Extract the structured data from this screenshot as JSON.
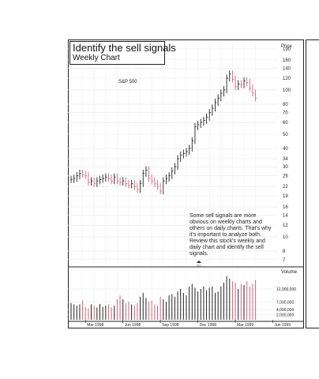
{
  "chart_data": {
    "type": "ohlc",
    "title": "Identify the sell signals",
    "subtitle": "Weekly Chart",
    "benchmark_label": "S&P 500",
    "price_axis_label": "Price",
    "volume_axis_label": "Volume",
    "price_scale": "log",
    "price_ticks": [
      190,
      160,
      140,
      120,
      100,
      80,
      70,
      60,
      50,
      40,
      34,
      30,
      26,
      22,
      19,
      16,
      14,
      12,
      10,
      8,
      7
    ],
    "price_range": [
      6.4,
      215
    ],
    "volume_ticks": [
      "12,000,000",
      "7,000,000",
      "4,000,000",
      "2,000,000"
    ],
    "volume_tick_values": [
      12000000,
      7000000,
      4000000,
      2000000
    ],
    "volume_max": 20000000,
    "x_labels": [
      "Mar 1998",
      "Jun 1998",
      "Sep 1998",
      "Dec 1998",
      "Mar 1999",
      "Jun 1999"
    ],
    "x_label_weeks": [
      5,
      18,
      31,
      44,
      57,
      70
    ],
    "grid": true,
    "split_marker": "2/1",
    "split_marker_week": 55,
    "note": "Some sell signals are more obvious on weekly charts and others on daily charts. That's why it's important to analyze both. Review this stock's weekly and daily chart and identify the sell signals.",
    "weekly_close": [
      24.5,
      25.0,
      26.0,
      27.0,
      26.5,
      26.0,
      23.5,
      24.0,
      23.0,
      24.0,
      24.5,
      25.0,
      25.5,
      25.0,
      24.0,
      25.5,
      24.0,
      23.5,
      24.0,
      23.0,
      22.5,
      23.0,
      22.0,
      21.0,
      23.0,
      27.0,
      28.5,
      25.0,
      24.0,
      23.0,
      22.0,
      20.5,
      24.0,
      25.0,
      26.0,
      28.0,
      30.0,
      34.0,
      36.0,
      37.0,
      38.0,
      40.0,
      45.0,
      56.0,
      58.0,
      60.0,
      62.0,
      65.0,
      70.0,
      75.0,
      82.0,
      88.0,
      95.0,
      100.0,
      120.0,
      128.0,
      118.0,
      105.0,
      110.0,
      108.0,
      115.0,
      112.0,
      103.0,
      95.0,
      88.0
    ],
    "weekly_volume": [
      6.5,
      6.0,
      5.5,
      6.0,
      7.5,
      5.0,
      4.5,
      6.0,
      5.5,
      4.8,
      6.2,
      5.0,
      5.5,
      6.0,
      5.0,
      5.5,
      8.0,
      9.5,
      8.0,
      6.5,
      7.0,
      6.0,
      5.5,
      6.5,
      9.0,
      10.5,
      8.5,
      7.0,
      7.5,
      6.0,
      5.5,
      9.0,
      8.0,
      7.0,
      9.5,
      10.0,
      9.0,
      11.0,
      12.0,
      10.5,
      9.5,
      13.0,
      14.0,
      12.5,
      11.0,
      12.0,
      13.0,
      11.5,
      12.5,
      13.0,
      10.5,
      11.0,
      13.0,
      14.5,
      17.0,
      16.0,
      15.0,
      14.5,
      12.0,
      14.0,
      13.5,
      15.0,
      13.0,
      14.0,
      15.5
    ]
  }
}
